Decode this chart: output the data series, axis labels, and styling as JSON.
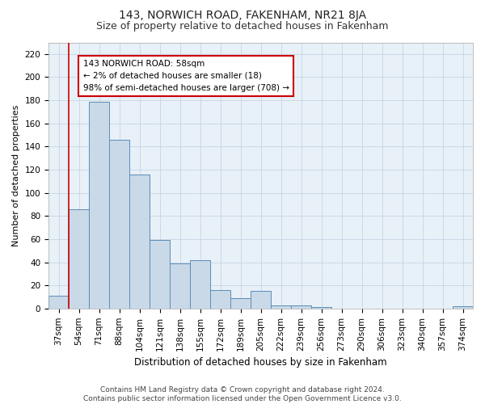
{
  "title": "143, NORWICH ROAD, FAKENHAM, NR21 8JA",
  "subtitle": "Size of property relative to detached houses in Fakenham",
  "xlabel": "Distribution of detached houses by size in Fakenham",
  "ylabel": "Number of detached properties",
  "bar_labels": [
    "37sqm",
    "54sqm",
    "71sqm",
    "88sqm",
    "104sqm",
    "121sqm",
    "138sqm",
    "155sqm",
    "172sqm",
    "189sqm",
    "205sqm",
    "222sqm",
    "239sqm",
    "256sqm",
    "273sqm",
    "290sqm",
    "306sqm",
    "323sqm",
    "340sqm",
    "357sqm",
    "374sqm"
  ],
  "bar_values": [
    11,
    86,
    179,
    146,
    116,
    59,
    39,
    42,
    16,
    9,
    15,
    3,
    3,
    1,
    0,
    0,
    0,
    0,
    0,
    0,
    2
  ],
  "bar_color": "#c9d9e8",
  "bar_edgecolor": "#5b8db8",
  "vline_x": 0.5,
  "vline_color": "#cc0000",
  "annotation_text": "143 NORWICH ROAD: 58sqm\n← 2% of detached houses are smaller (18)\n98% of semi-detached houses are larger (708) →",
  "annotation_box_color": "#ffffff",
  "annotation_box_edgecolor": "#cc0000",
  "ylim": [
    0,
    230
  ],
  "yticks": [
    0,
    20,
    40,
    60,
    80,
    100,
    120,
    140,
    160,
    180,
    200,
    220
  ],
  "background_color": "#ffffff",
  "plot_bg_color": "#e8f0f8",
  "grid_color": "#c0cfe0",
  "footer_text": "Contains HM Land Registry data © Crown copyright and database right 2024.\nContains public sector information licensed under the Open Government Licence v3.0.",
  "title_fontsize": 10,
  "subtitle_fontsize": 9,
  "xlabel_fontsize": 8.5,
  "ylabel_fontsize": 8,
  "tick_fontsize": 7.5,
  "annotation_fontsize": 7.5,
  "footer_fontsize": 6.5
}
